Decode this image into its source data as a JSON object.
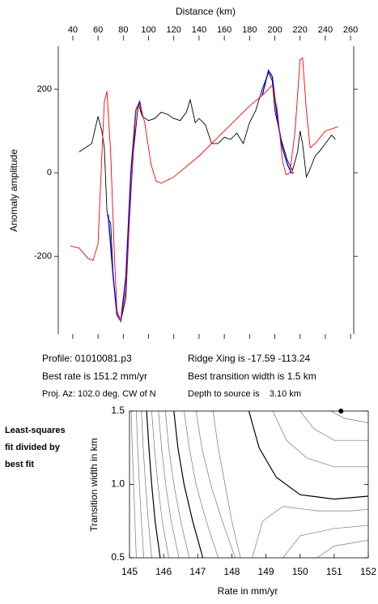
{
  "chart_data": [
    {
      "type": "line",
      "xlabel": "Distance (km)",
      "ylabel": "Anomaly amplitude",
      "xlim": [
        28.5,
        262.5
      ],
      "ylim": [
        -386,
        303
      ],
      "xticks": [
        40,
        60,
        80,
        100,
        120,
        140,
        160,
        180,
        200,
        220,
        240,
        260
      ],
      "yticks": [
        -200,
        0,
        200
      ],
      "series": [
        {
          "color": "#000000",
          "x": [
            45,
            50,
            55,
            60,
            63,
            65,
            67,
            68,
            70,
            72,
            75,
            78,
            82,
            85,
            88,
            92,
            95,
            100,
            105,
            110,
            115,
            120,
            125,
            130,
            133,
            137,
            140,
            145,
            150,
            155,
            160,
            165,
            170,
            175,
            180,
            185,
            190,
            195,
            198,
            200,
            205,
            210,
            214,
            218,
            220,
            222,
            225,
            228,
            232,
            235,
            240,
            245,
            248
          ],
          "values": [
            50,
            60,
            70,
            135,
            100,
            60,
            -90,
            -110,
            -120,
            -250,
            -340,
            -355,
            -300,
            -100,
            50,
            165,
            135,
            125,
            130,
            145,
            140,
            130,
            125,
            145,
            175,
            120,
            130,
            115,
            70,
            70,
            85,
            80,
            95,
            70,
            120,
            150,
            200,
            240,
            220,
            150,
            80,
            30,
            5,
            50,
            100,
            70,
            -10,
            10,
            40,
            50,
            70,
            90,
            80
          ]
        },
        {
          "color": "#0000ff",
          "x": [
            68,
            72,
            75,
            78,
            82,
            86,
            90,
            93,
            95,
            null,
            190,
            195,
            198,
            202,
            206,
            210,
            213,
            215
          ],
          "values": [
            -100,
            -250,
            -340,
            -355,
            -250,
            0,
            150,
            170,
            140,
            null,
            185,
            245,
            230,
            130,
            60,
            20,
            0,
            0
          ]
        },
        {
          "color": "#ff0000",
          "x": [
            38,
            45,
            52,
            56,
            60,
            63,
            65,
            67,
            70,
            73,
            75,
            78,
            82,
            86,
            90,
            93,
            97,
            102,
            106,
            110,
            120,
            140,
            160,
            180,
            190,
            198,
            202,
            206,
            209,
            212,
            216,
            220,
            222,
            225,
            228,
            232,
            240,
            250
          ],
          "values": [
            -175,
            -180,
            -205,
            -210,
            -170,
            40,
            170,
            195,
            50,
            -200,
            -330,
            -355,
            -280,
            -50,
            150,
            165,
            120,
            20,
            -20,
            -25,
            -10,
            40,
            100,
            160,
            185,
            210,
            150,
            30,
            -5,
            0,
            100,
            270,
            275,
            150,
            60,
            70,
            100,
            110
          ]
        }
      ]
    },
    {
      "type": "contour",
      "xlabel": "Rate in mm/yr",
      "ylabel": "Transition width in km",
      "side_label": [
        "Least-squares",
        "fit divided by",
        "best fit"
      ],
      "xlim": [
        145,
        152
      ],
      "ylim": [
        0.5,
        1.5
      ],
      "xticks": [
        145,
        146,
        147,
        148,
        149,
        150,
        151,
        152
      ],
      "yticks": [
        0.5,
        {
          "value": 1,
          "label": "1.0"
        },
        1.5
      ],
      "best": {
        "x": 151.2,
        "y": 1.5
      },
      "contours": [
        {
          "color": "#777777",
          "x": [
            145.05,
            145.08,
            145.12,
            145.16,
            145.2
          ],
          "y": [
            1.5,
            1.25,
            1.0,
            0.75,
            0.5
          ]
        },
        {
          "color": "#777777",
          "x": [
            145.2,
            145.24,
            145.29,
            145.35,
            145.42
          ],
          "y": [
            1.5,
            1.25,
            1.0,
            0.75,
            0.5
          ]
        },
        {
          "color": "#777777",
          "x": [
            145.35,
            145.4,
            145.47,
            145.55,
            145.65
          ],
          "y": [
            1.5,
            1.25,
            1.0,
            0.75,
            0.5
          ]
        },
        {
          "color": "#000000",
          "x": [
            145.5,
            145.57,
            145.65,
            145.75,
            145.9
          ],
          "y": [
            1.5,
            1.25,
            1.0,
            0.75,
            0.5
          ]
        },
        {
          "color": "#777777",
          "x": [
            145.65,
            145.73,
            145.83,
            145.96,
            146.15
          ],
          "y": [
            1.5,
            1.25,
            1.0,
            0.75,
            0.5
          ]
        },
        {
          "color": "#777777",
          "x": [
            145.85,
            145.94,
            146.06,
            146.22,
            146.45
          ],
          "y": [
            1.5,
            1.25,
            1.0,
            0.75,
            0.5
          ]
        },
        {
          "color": "#777777",
          "x": [
            146.05,
            146.15,
            146.3,
            146.5,
            146.75
          ],
          "y": [
            1.5,
            1.25,
            1.0,
            0.75,
            0.5
          ]
        },
        {
          "color": "#000000",
          "x": [
            146.3,
            146.42,
            146.6,
            146.85,
            147.15
          ],
          "y": [
            1.5,
            1.25,
            1.0,
            0.75,
            0.5
          ]
        },
        {
          "color": "#777777",
          "x": [
            146.6,
            146.75,
            146.95,
            147.25,
            147.6
          ],
          "y": [
            1.5,
            1.25,
            1.0,
            0.75,
            0.5
          ]
        },
        {
          "color": "#777777",
          "x": [
            146.95,
            147.12,
            147.38,
            147.72,
            148.1
          ],
          "y": [
            1.5,
            1.25,
            1.0,
            0.75,
            0.5
          ]
        },
        {
          "color": "#777777",
          "x": [
            147.45,
            147.6,
            147.8,
            148.0,
            148.25
          ],
          "y": [
            1.5,
            1.25,
            1.0,
            0.75,
            0.5
          ]
        },
        {
          "color": "#000000",
          "x": [
            148.5,
            148.8,
            149.3,
            150,
            151,
            152
          ],
          "y": [
            1.5,
            1.25,
            1.05,
            0.93,
            0.9,
            0.92
          ]
        },
        {
          "color": "#777777",
          "x": [
            149.2,
            149.6,
            150.2,
            151,
            152
          ],
          "y": [
            1.5,
            1.3,
            1.18,
            1.12,
            1.12
          ]
        },
        {
          "color": "#777777",
          "x": [
            150.0,
            150.4,
            151,
            152
          ],
          "y": [
            1.5,
            1.38,
            1.3,
            1.3
          ]
        },
        {
          "color": "#777777",
          "x": [
            150.9,
            151.3,
            152
          ],
          "y": [
            1.5,
            1.45,
            1.42
          ]
        },
        {
          "color": "#777777",
          "x": [
            148.6,
            148.9,
            149.5,
            150.5,
            151.5,
            152
          ],
          "y": [
            0.5,
            0.75,
            0.85,
            0.82,
            0.82,
            0.83
          ]
        },
        {
          "color": "#777777",
          "x": [
            149.5,
            150,
            151,
            152
          ],
          "y": [
            0.5,
            0.65,
            0.7,
            0.72
          ]
        },
        {
          "color": "#777777",
          "x": [
            150.5,
            151,
            152
          ],
          "y": [
            0.5,
            0.58,
            0.62
          ]
        }
      ]
    }
  ],
  "annotations": [
    "Profile: 01010081.p3",
    "Best rate is 151.2 mm/yr",
    "Proj. Az: 102.0 deg. CW of N",
    "Ridge Xing is -17.59 -113.24",
    "Best transition width is 1.5 km",
    "Depth to source is    3.10 km"
  ]
}
